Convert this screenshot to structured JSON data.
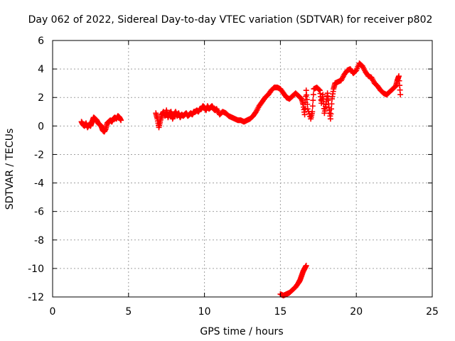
{
  "chart_data": {
    "type": "scatter",
    "title": "Day 062 of 2022, Sidereal Day-to-day VTEC variation (SDTVAR) for receiver p802",
    "xlabel": "GPS time / hours",
    "ylabel": "SDTVAR / TECUs",
    "xlim": [
      0,
      25
    ],
    "ylim": [
      -12,
      6
    ],
    "xticks": [
      0,
      5,
      10,
      15,
      20,
      25
    ],
    "yticks": [
      -12,
      -10,
      -8,
      -6,
      -4,
      -2,
      0,
      2,
      4,
      6
    ],
    "xtick_labels": [
      "0",
      "5",
      "10",
      "15",
      "20",
      "25"
    ],
    "ytick_labels": [
      "-12",
      "-10",
      "-8",
      "-6",
      "-4",
      "-2",
      "0",
      "2",
      "4",
      "6"
    ],
    "grid": true,
    "marker": "+",
    "color": "#ff0000",
    "series": [
      {
        "name": "SDTVAR",
        "points": [
          [
            1.9,
            0.3
          ],
          [
            2.0,
            0.1
          ],
          [
            2.1,
            0.0
          ],
          [
            2.2,
            0.2
          ],
          [
            2.3,
            -0.1
          ],
          [
            2.4,
            0.1
          ],
          [
            2.5,
            0.0
          ],
          [
            2.6,
            0.3
          ],
          [
            2.7,
            0.6
          ],
          [
            2.8,
            0.5
          ],
          [
            2.9,
            0.4
          ],
          [
            3.0,
            0.2
          ],
          [
            3.1,
            0.1
          ],
          [
            3.2,
            0.0
          ],
          [
            3.3,
            -0.3
          ],
          [
            3.4,
            -0.4
          ],
          [
            3.5,
            -0.2
          ],
          [
            3.6,
            0.2
          ],
          [
            3.7,
            0.3
          ],
          [
            3.8,
            0.4
          ],
          [
            3.9,
            0.3
          ],
          [
            4.0,
            0.5
          ],
          [
            4.1,
            0.6
          ],
          [
            4.2,
            0.5
          ],
          [
            4.3,
            0.7
          ],
          [
            4.4,
            0.6
          ],
          [
            4.5,
            0.4
          ],
          [
            6.8,
            0.9
          ],
          [
            6.9,
            0.5
          ],
          [
            7.0,
            -0.1
          ],
          [
            7.1,
            0.4
          ],
          [
            7.2,
            0.8
          ],
          [
            7.3,
            1.0
          ],
          [
            7.4,
            0.7
          ],
          [
            7.5,
            1.1
          ],
          [
            7.6,
            0.6
          ],
          [
            7.7,
            0.9
          ],
          [
            7.8,
            1.0
          ],
          [
            7.9,
            0.5
          ],
          [
            8.0,
            0.8
          ],
          [
            8.1,
            1.0
          ],
          [
            8.2,
            0.7
          ],
          [
            8.3,
            0.9
          ],
          [
            8.4,
            0.6
          ],
          [
            8.5,
            0.8
          ],
          [
            8.6,
            0.7
          ],
          [
            8.7,
            0.8
          ],
          [
            8.8,
            0.9
          ],
          [
            8.9,
            0.7
          ],
          [
            9.0,
            0.8
          ],
          [
            9.1,
            0.9
          ],
          [
            9.2,
            0.8
          ],
          [
            9.3,
            1.0
          ],
          [
            9.4,
            1.0
          ],
          [
            9.5,
            1.1
          ],
          [
            9.6,
            1.0
          ],
          [
            9.7,
            1.2
          ],
          [
            9.8,
            1.2
          ],
          [
            9.9,
            1.4
          ],
          [
            10.0,
            1.3
          ],
          [
            10.1,
            1.1
          ],
          [
            10.2,
            1.4
          ],
          [
            10.3,
            1.2
          ],
          [
            10.4,
            1.3
          ],
          [
            10.5,
            1.4
          ],
          [
            10.6,
            1.2
          ],
          [
            10.7,
            1.1
          ],
          [
            10.8,
            1.2
          ],
          [
            11.0,
            0.8
          ],
          [
            11.2,
            1.0
          ],
          [
            11.4,
            0.9
          ],
          [
            11.6,
            0.7
          ],
          [
            11.8,
            0.6
          ],
          [
            12.0,
            0.5
          ],
          [
            12.2,
            0.4
          ],
          [
            12.4,
            0.4
          ],
          [
            12.6,
            0.3
          ],
          [
            12.8,
            0.4
          ],
          [
            13.0,
            0.5
          ],
          [
            13.2,
            0.7
          ],
          [
            13.4,
            1.0
          ],
          [
            13.6,
            1.4
          ],
          [
            13.8,
            1.7
          ],
          [
            14.0,
            2.0
          ],
          [
            14.2,
            2.2
          ],
          [
            14.4,
            2.5
          ],
          [
            14.6,
            2.7
          ],
          [
            14.8,
            2.7
          ],
          [
            15.0,
            2.6
          ],
          [
            15.2,
            2.3
          ],
          [
            15.4,
            2.0
          ],
          [
            15.6,
            1.9
          ],
          [
            15.8,
            2.1
          ],
          [
            16.0,
            2.3
          ],
          [
            16.2,
            2.1
          ],
          [
            16.4,
            1.9
          ],
          [
            16.5,
            1.5
          ],
          [
            16.6,
            0.8
          ],
          [
            16.7,
            2.5
          ],
          [
            16.8,
            1.2
          ],
          [
            17.0,
            0.5
          ],
          [
            17.1,
            1.0
          ],
          [
            17.2,
            2.6
          ],
          [
            17.4,
            2.7
          ],
          [
            17.6,
            2.5
          ],
          [
            17.7,
            1.6
          ],
          [
            17.8,
            2.2
          ],
          [
            17.9,
            0.9
          ],
          [
            18.0,
            1.5
          ],
          [
            18.1,
            2.3
          ],
          [
            18.2,
            1.3
          ],
          [
            18.3,
            0.5
          ],
          [
            18.4,
            1.9
          ],
          [
            18.5,
            2.6
          ],
          [
            18.6,
            3.0
          ],
          [
            18.8,
            3.1
          ],
          [
            19.0,
            3.2
          ],
          [
            19.2,
            3.6
          ],
          [
            19.4,
            3.9
          ],
          [
            19.6,
            4.0
          ],
          [
            19.8,
            3.7
          ],
          [
            20.0,
            3.9
          ],
          [
            20.2,
            4.4
          ],
          [
            20.4,
            4.2
          ],
          [
            20.6,
            3.8
          ],
          [
            20.8,
            3.5
          ],
          [
            21.0,
            3.4
          ],
          [
            21.2,
            3.0
          ],
          [
            21.4,
            2.8
          ],
          [
            21.6,
            2.5
          ],
          [
            21.8,
            2.3
          ],
          [
            22.0,
            2.2
          ],
          [
            22.2,
            2.4
          ],
          [
            22.4,
            2.6
          ],
          [
            22.6,
            2.8
          ],
          [
            22.7,
            3.2
          ],
          [
            22.8,
            3.5
          ],
          [
            22.9,
            2.2
          ],
          [
            15.0,
            -11.8
          ],
          [
            15.2,
            -11.9
          ],
          [
            15.4,
            -11.8
          ],
          [
            15.6,
            -11.7
          ],
          [
            15.8,
            -11.5
          ],
          [
            16.0,
            -11.3
          ],
          [
            16.2,
            -11.0
          ],
          [
            16.3,
            -10.8
          ],
          [
            16.4,
            -10.5
          ],
          [
            16.5,
            -10.2
          ],
          [
            16.6,
            -10.0
          ],
          [
            16.7,
            -9.8
          ]
        ]
      }
    ]
  }
}
